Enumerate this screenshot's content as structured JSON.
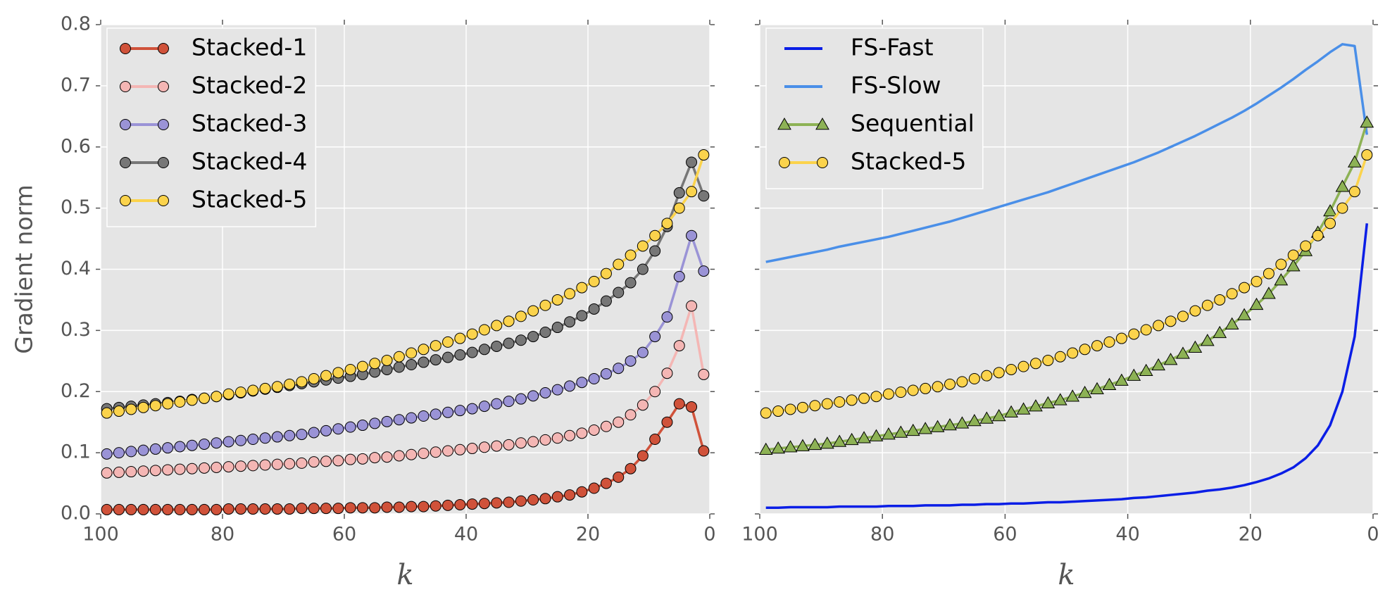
{
  "chart_data": [
    {
      "type": "line",
      "xlabel": "k",
      "ylabel": "Gradient norm",
      "xlim": [
        100,
        0
      ],
      "ylim": [
        0,
        0.8
      ],
      "xticks": [
        100,
        80,
        60,
        40,
        20,
        0
      ],
      "yticks": [
        {
          "value": 0,
          "label": "0.0"
        },
        0.1,
        0.2,
        0.3,
        0.4,
        0.5,
        0.6,
        0.7,
        0.8
      ],
      "ytick_labels": true,
      "grid": true,
      "legend": "upper left",
      "x": [
        99,
        97,
        95,
        93,
        91,
        89,
        87,
        85,
        83,
        81,
        79,
        77,
        75,
        73,
        71,
        69,
        67,
        65,
        63,
        61,
        59,
        57,
        55,
        53,
        51,
        49,
        47,
        45,
        43,
        41,
        39,
        37,
        35,
        33,
        31,
        29,
        27,
        25,
        23,
        21,
        19,
        17,
        15,
        13,
        11,
        9,
        7,
        5,
        3,
        1
      ],
      "series": [
        {
          "name": "Stacked-1",
          "color": "#d0523a",
          "marker": "o",
          "values": [
            0.007,
            0.007,
            0.007,
            0.007,
            0.007,
            0.007,
            0.007,
            0.007,
            0.007,
            0.007,
            0.008,
            0.008,
            0.008,
            0.008,
            0.008,
            0.008,
            0.009,
            0.009,
            0.009,
            0.009,
            0.01,
            0.01,
            0.01,
            0.011,
            0.011,
            0.012,
            0.012,
            0.013,
            0.014,
            0.015,
            0.016,
            0.017,
            0.018,
            0.019,
            0.021,
            0.023,
            0.025,
            0.028,
            0.031,
            0.036,
            0.042,
            0.05,
            0.06,
            0.074,
            0.095,
            0.122,
            0.15,
            0.18,
            0.175,
            0.103
          ]
        },
        {
          "name": "Stacked-2",
          "color": "#f4b6b4",
          "marker": "o",
          "values": [
            0.067,
            0.068,
            0.069,
            0.07,
            0.071,
            0.072,
            0.073,
            0.074,
            0.075,
            0.076,
            0.077,
            0.078,
            0.079,
            0.08,
            0.081,
            0.082,
            0.083,
            0.085,
            0.086,
            0.087,
            0.089,
            0.09,
            0.092,
            0.093,
            0.095,
            0.097,
            0.099,
            0.101,
            0.103,
            0.105,
            0.107,
            0.109,
            0.111,
            0.113,
            0.116,
            0.118,
            0.121,
            0.124,
            0.128,
            0.132,
            0.137,
            0.143,
            0.15,
            0.162,
            0.178,
            0.2,
            0.23,
            0.275,
            0.34,
            0.228
          ]
        },
        {
          "name": "Stacked-3",
          "color": "#9a93d6",
          "marker": "o",
          "values": [
            0.098,
            0.1,
            0.102,
            0.104,
            0.106,
            0.108,
            0.11,
            0.112,
            0.114,
            0.116,
            0.118,
            0.12,
            0.122,
            0.124,
            0.126,
            0.128,
            0.13,
            0.133,
            0.136,
            0.139,
            0.142,
            0.145,
            0.148,
            0.151,
            0.154,
            0.157,
            0.16,
            0.163,
            0.166,
            0.169,
            0.172,
            0.176,
            0.18,
            0.184,
            0.188,
            0.193,
            0.198,
            0.203,
            0.209,
            0.215,
            0.221,
            0.229,
            0.238,
            0.25,
            0.264,
            0.29,
            0.322,
            0.388,
            0.455,
            0.397
          ]
        },
        {
          "name": "Stacked-4",
          "color": "#777777",
          "marker": "o",
          "values": [
            0.172,
            0.174,
            0.176,
            0.178,
            0.18,
            0.182,
            0.184,
            0.187,
            0.189,
            0.192,
            0.195,
            0.198,
            0.201,
            0.204,
            0.207,
            0.21,
            0.213,
            0.216,
            0.219,
            0.222,
            0.225,
            0.228,
            0.232,
            0.236,
            0.24,
            0.244,
            0.248,
            0.252,
            0.256,
            0.26,
            0.264,
            0.269,
            0.274,
            0.279,
            0.284,
            0.29,
            0.297,
            0.305,
            0.314,
            0.324,
            0.335,
            0.348,
            0.362,
            0.378,
            0.4,
            0.43,
            0.47,
            0.525,
            0.575,
            0.52
          ]
        },
        {
          "name": "Stacked-5",
          "color": "#fbd34c",
          "marker": "o",
          "values": [
            0.165,
            0.168,
            0.171,
            0.174,
            0.177,
            0.18,
            0.183,
            0.186,
            0.189,
            0.192,
            0.196,
            0.199,
            0.202,
            0.205,
            0.208,
            0.212,
            0.216,
            0.221,
            0.226,
            0.231,
            0.236,
            0.241,
            0.246,
            0.251,
            0.257,
            0.263,
            0.269,
            0.275,
            0.281,
            0.287,
            0.294,
            0.301,
            0.308,
            0.315,
            0.323,
            0.332,
            0.341,
            0.35,
            0.36,
            0.37,
            0.38,
            0.393,
            0.408,
            0.423,
            0.438,
            0.455,
            0.475,
            0.5,
            0.527,
            0.587
          ]
        }
      ]
    },
    {
      "type": "line",
      "xlabel": "k",
      "xlim": [
        100,
        0
      ],
      "ylim": [
        0,
        0.8
      ],
      "xticks": [
        100,
        80,
        60,
        40,
        20,
        0
      ],
      "yticks": [
        {
          "value": 0,
          "label": "0.0"
        },
        0.1,
        0.2,
        0.3,
        0.4,
        0.5,
        0.6,
        0.7,
        0.8
      ],
      "ytick_labels": false,
      "grid": true,
      "legend": "upper left",
      "x": [
        99,
        97,
        95,
        93,
        91,
        89,
        87,
        85,
        83,
        81,
        79,
        77,
        75,
        73,
        71,
        69,
        67,
        65,
        63,
        61,
        59,
        57,
        55,
        53,
        51,
        49,
        47,
        45,
        43,
        41,
        39,
        37,
        35,
        33,
        31,
        29,
        27,
        25,
        23,
        21,
        19,
        17,
        15,
        13,
        11,
        9,
        7,
        5,
        3,
        1
      ],
      "series": [
        {
          "name": "FS-Fast",
          "color": "#0a1ee6",
          "marker": "none",
          "values": [
            0.01,
            0.01,
            0.011,
            0.011,
            0.011,
            0.011,
            0.012,
            0.012,
            0.012,
            0.012,
            0.013,
            0.013,
            0.013,
            0.014,
            0.014,
            0.014,
            0.015,
            0.015,
            0.016,
            0.016,
            0.017,
            0.017,
            0.018,
            0.019,
            0.019,
            0.02,
            0.021,
            0.022,
            0.023,
            0.024,
            0.026,
            0.027,
            0.029,
            0.031,
            0.033,
            0.035,
            0.038,
            0.04,
            0.043,
            0.047,
            0.052,
            0.058,
            0.066,
            0.076,
            0.091,
            0.112,
            0.145,
            0.2,
            0.29,
            0.475
          ]
        },
        {
          "name": "FS-Slow",
          "color": "#4a8fe8",
          "marker": "none",
          "values": [
            0.412,
            0.416,
            0.42,
            0.424,
            0.428,
            0.432,
            0.437,
            0.441,
            0.445,
            0.449,
            0.453,
            0.458,
            0.463,
            0.468,
            0.473,
            0.478,
            0.484,
            0.49,
            0.496,
            0.502,
            0.508,
            0.514,
            0.52,
            0.526,
            0.533,
            0.54,
            0.547,
            0.554,
            0.561,
            0.568,
            0.575,
            0.583,
            0.591,
            0.6,
            0.609,
            0.618,
            0.628,
            0.638,
            0.648,
            0.659,
            0.671,
            0.684,
            0.697,
            0.711,
            0.726,
            0.74,
            0.755,
            0.768,
            0.765,
            0.62
          ]
        },
        {
          "name": "Sequential",
          "color": "#8db255",
          "marker": "^",
          "values": [
            0.105,
            0.107,
            0.109,
            0.111,
            0.113,
            0.115,
            0.118,
            0.121,
            0.124,
            0.127,
            0.13,
            0.133,
            0.136,
            0.139,
            0.142,
            0.145,
            0.148,
            0.152,
            0.156,
            0.16,
            0.166,
            0.171,
            0.176,
            0.181,
            0.186,
            0.192,
            0.198,
            0.204,
            0.211,
            0.218,
            0.226,
            0.234,
            0.243,
            0.252,
            0.262,
            0.272,
            0.283,
            0.296,
            0.31,
            0.325,
            0.342,
            0.36,
            0.382,
            0.405,
            0.43,
            0.46,
            0.495,
            0.535,
            0.575,
            0.64
          ]
        },
        {
          "name": "Stacked-5",
          "color": "#fbd34c",
          "marker": "o",
          "values": [
            0.165,
            0.168,
            0.171,
            0.174,
            0.177,
            0.18,
            0.183,
            0.186,
            0.189,
            0.192,
            0.196,
            0.199,
            0.202,
            0.205,
            0.208,
            0.212,
            0.216,
            0.221,
            0.226,
            0.231,
            0.236,
            0.241,
            0.246,
            0.251,
            0.257,
            0.263,
            0.269,
            0.275,
            0.281,
            0.287,
            0.294,
            0.301,
            0.308,
            0.315,
            0.323,
            0.332,
            0.341,
            0.35,
            0.36,
            0.37,
            0.38,
            0.393,
            0.408,
            0.423,
            0.438,
            0.455,
            0.475,
            0.5,
            0.527,
            0.587
          ]
        }
      ]
    }
  ]
}
